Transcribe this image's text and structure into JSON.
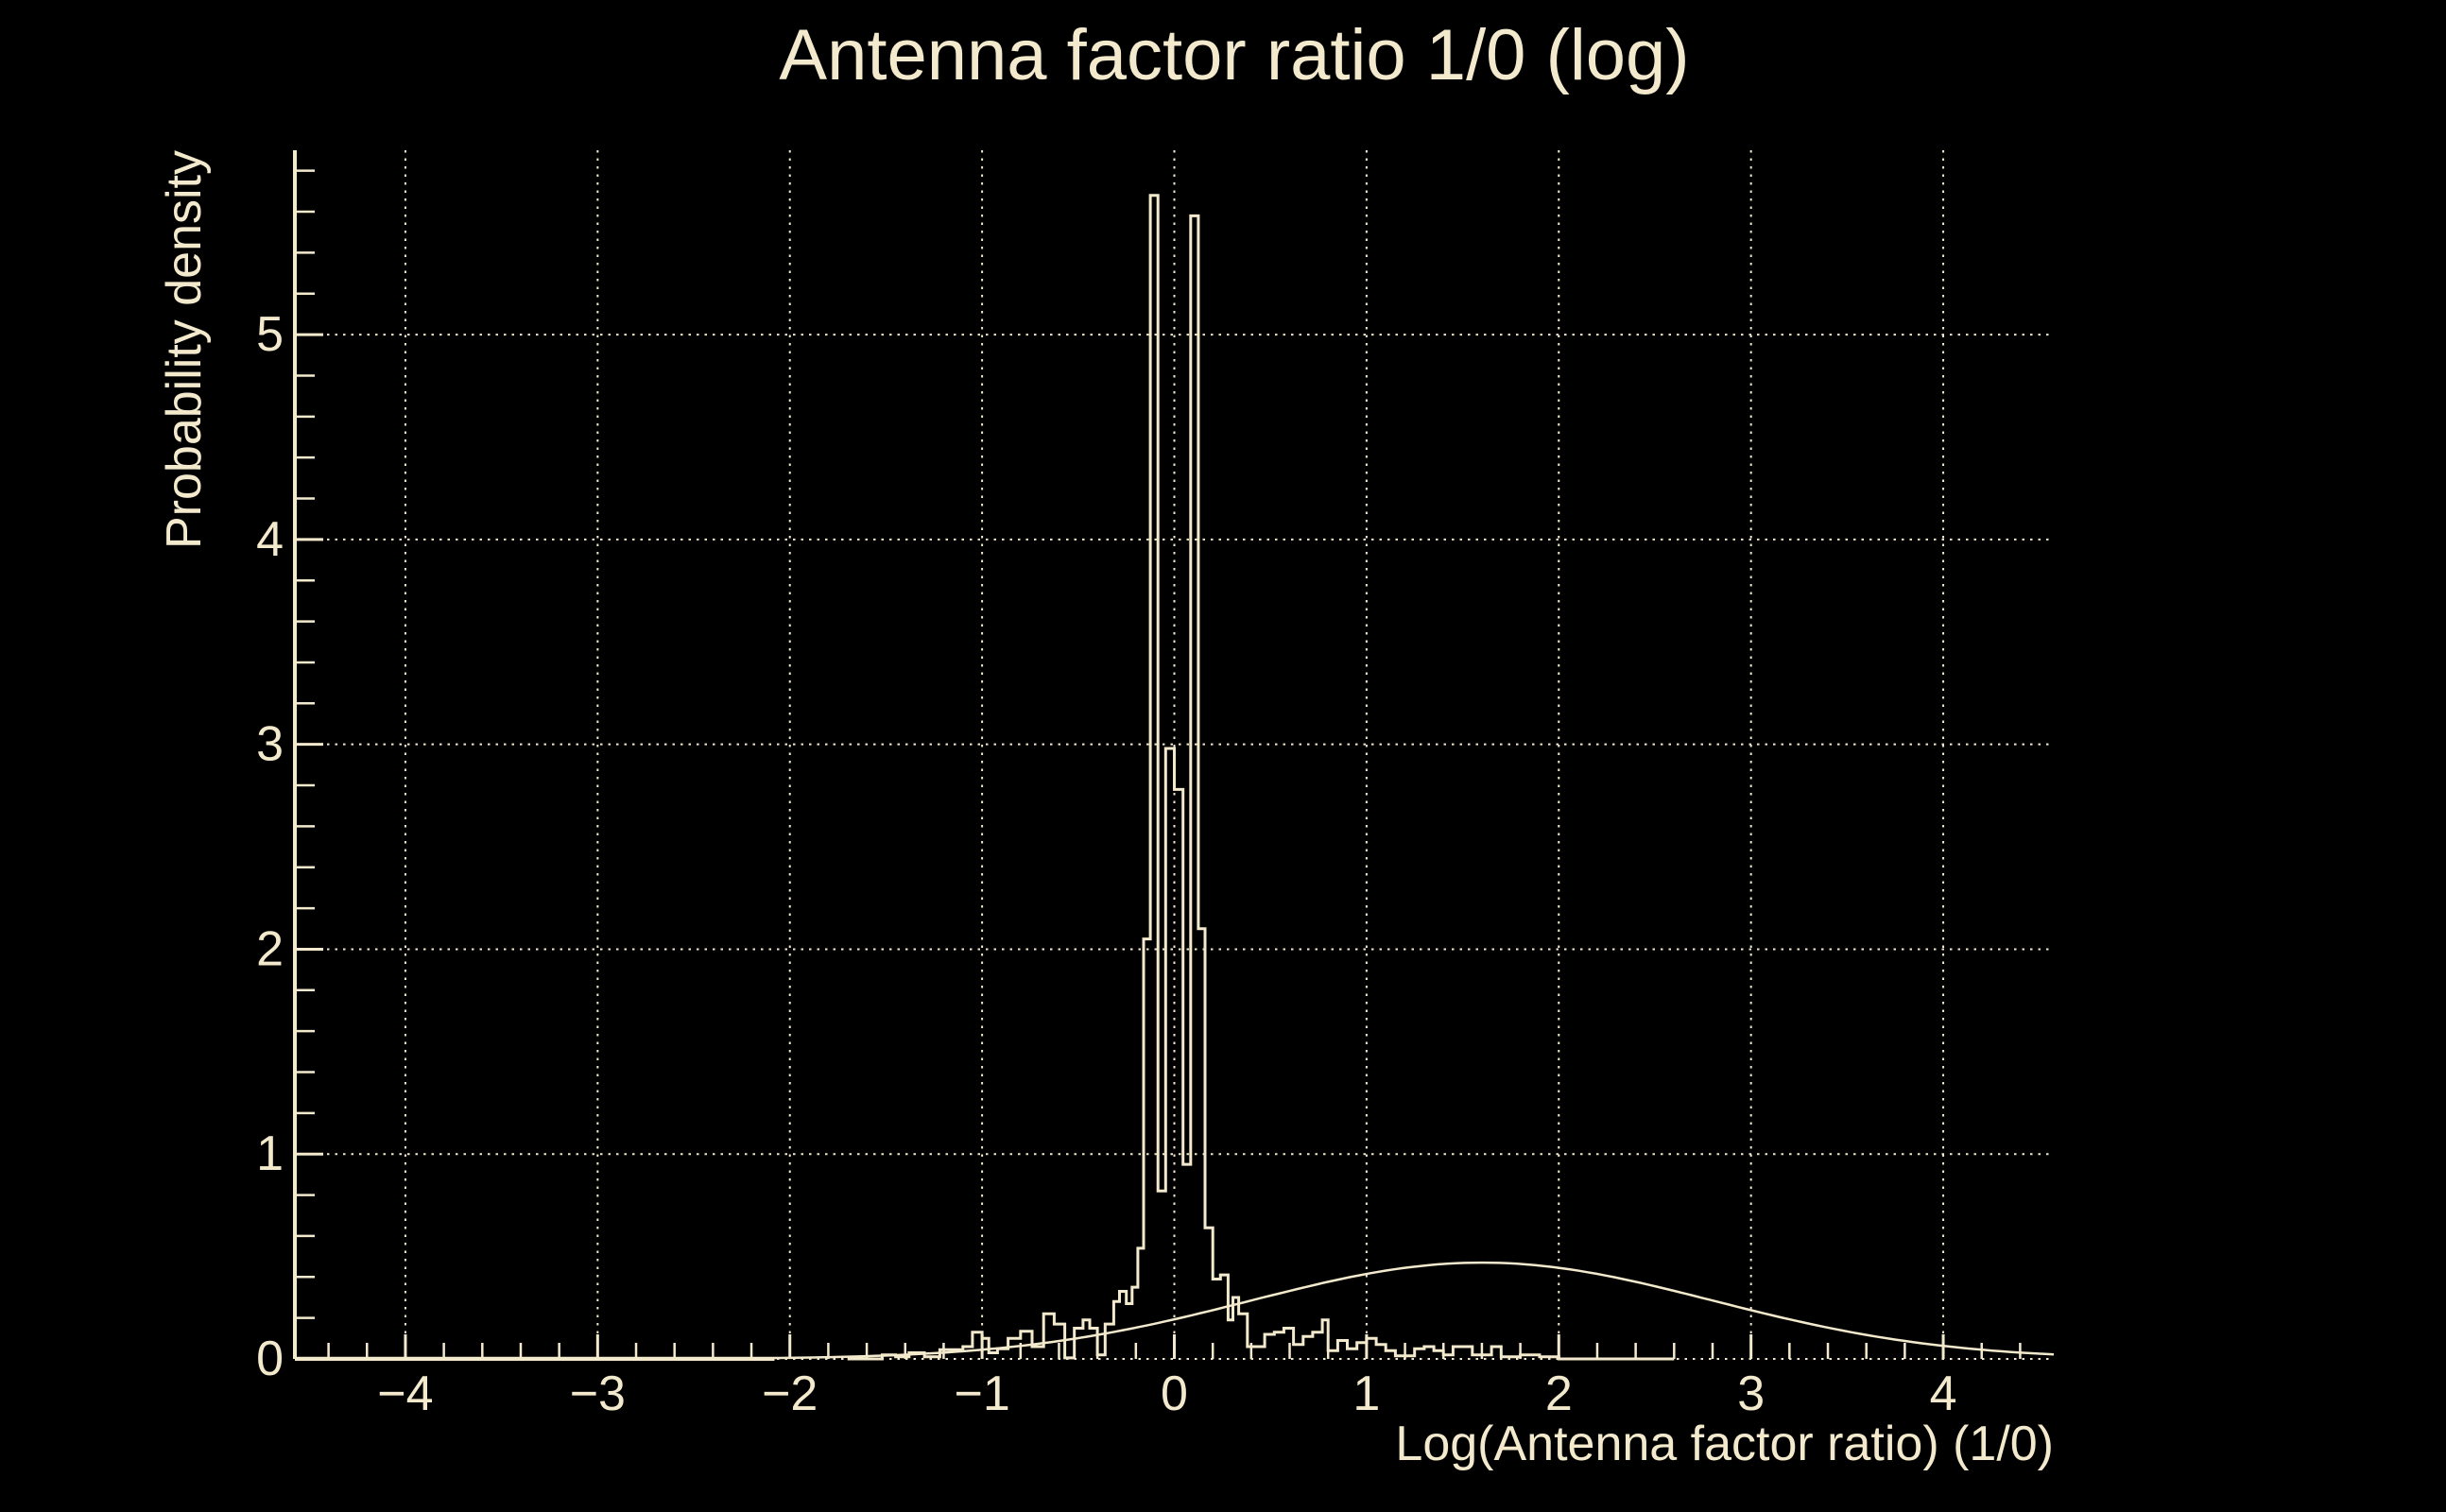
{
  "palette": {
    "background": "#000000",
    "foreground": "#f3e9cc"
  },
  "chart_data": {
    "type": "line",
    "title": "Antenna factor ratio 1/0 (log)",
    "xlabel": "Log(Antenna factor ratio) (1/0)",
    "ylabel": "Probability density",
    "xlim": [
      -4.575,
      4.575
    ],
    "ylim": [
      0,
      5.9
    ],
    "x_major_ticks": [
      -4,
      -3,
      -2,
      -1,
      0,
      1,
      2,
      3,
      4
    ],
    "y_major_ticks": [
      0,
      1,
      2,
      3,
      4,
      5
    ],
    "minor_tick_step": 0.2,
    "grid": "dotted",
    "legend": "none",
    "series": [
      {
        "name": "histogram",
        "style": "step",
        "note": "pairs of [bin_left_edge, height]; each height holds until next edge",
        "bins": [
          [
            -1.7,
            0.0
          ],
          [
            -1.52,
            0.02
          ],
          [
            -1.45,
            0.01
          ],
          [
            -1.38,
            0.03
          ],
          [
            -1.3,
            0.01
          ],
          [
            -1.22,
            0.045
          ],
          [
            -1.1,
            0.06
          ],
          [
            -1.05,
            0.13
          ],
          [
            -1.0,
            0.1
          ],
          [
            -0.965,
            0.03
          ],
          [
            -0.92,
            0.05
          ],
          [
            -0.865,
            0.1
          ],
          [
            -0.8,
            0.135
          ],
          [
            -0.74,
            0.06
          ],
          [
            -0.68,
            0.22
          ],
          [
            -0.625,
            0.17
          ],
          [
            -0.57,
            0.005
          ],
          [
            -0.52,
            0.15
          ],
          [
            -0.475,
            0.19
          ],
          [
            -0.44,
            0.15
          ],
          [
            -0.4,
            0.02
          ],
          [
            -0.36,
            0.17
          ],
          [
            -0.315,
            0.28
          ],
          [
            -0.285,
            0.33
          ],
          [
            -0.25,
            0.27
          ],
          [
            -0.22,
            0.35
          ],
          [
            -0.19,
            0.54
          ],
          [
            -0.16,
            2.05
          ],
          [
            -0.125,
            5.68
          ],
          [
            -0.085,
            0.82
          ],
          [
            -0.045,
            2.98
          ],
          [
            0.0,
            2.78
          ],
          [
            0.045,
            0.95
          ],
          [
            0.085,
            5.58
          ],
          [
            0.125,
            2.1
          ],
          [
            0.16,
            0.64
          ],
          [
            0.2,
            0.39
          ],
          [
            0.24,
            0.41
          ],
          [
            0.28,
            0.19
          ],
          [
            0.305,
            0.3
          ],
          [
            0.335,
            0.22
          ],
          [
            0.38,
            0.06
          ],
          [
            0.425,
            0.06
          ],
          [
            0.47,
            0.12
          ],
          [
            0.52,
            0.13
          ],
          [
            0.57,
            0.15
          ],
          [
            0.62,
            0.07
          ],
          [
            0.67,
            0.11
          ],
          [
            0.72,
            0.13
          ],
          [
            0.77,
            0.19
          ],
          [
            0.8,
            0.04
          ],
          [
            0.85,
            0.09
          ],
          [
            0.9,
            0.05
          ],
          [
            0.95,
            0.08
          ],
          [
            1.0,
            0.1
          ],
          [
            1.05,
            0.07
          ],
          [
            1.1,
            0.04
          ],
          [
            1.15,
            0.015
          ],
          [
            1.25,
            0.05
          ],
          [
            1.3,
            0.06
          ],
          [
            1.35,
            0.04
          ],
          [
            1.4,
            0.02
          ],
          [
            1.45,
            0.06
          ],
          [
            1.55,
            0.02
          ],
          [
            1.65,
            0.06
          ],
          [
            1.7,
            0.01
          ],
          [
            1.8,
            0.02
          ],
          [
            1.9,
            0.01
          ],
          [
            2.0,
            0.0
          ]
        ],
        "x_end": 2.6
      },
      {
        "name": "gaussian-curve",
        "style": "smooth",
        "amplitude": 0.47,
        "mean": 1.6,
        "sigma": 1.2,
        "peak_y": 0.47
      }
    ]
  }
}
